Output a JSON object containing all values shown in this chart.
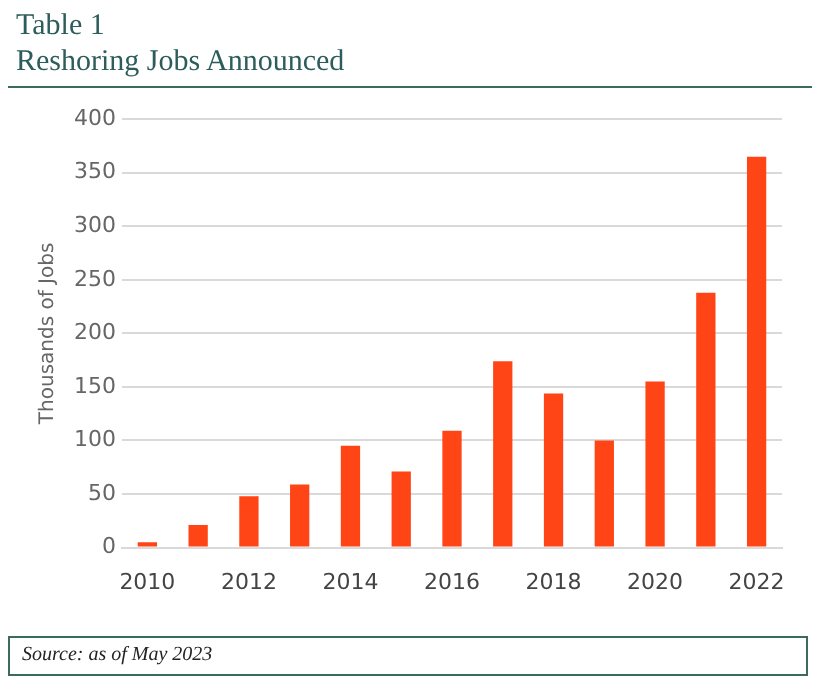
{
  "chart_data": {
    "type": "bar",
    "title": "Table 1",
    "subtitle": "Reshoring Jobs Announced",
    "ylabel": "Thousands of Jobs",
    "categories": [
      "2010",
      null,
      "2012",
      null,
      "2014",
      null,
      "2016",
      null,
      "2018",
      null,
      "2020",
      null,
      "2022"
    ],
    "values": [
      5,
      21,
      48,
      59,
      95,
      71,
      109,
      174,
      144,
      100,
      155,
      238,
      365
    ],
    "color": "#ff4516",
    "ylim": [
      0,
      400
    ],
    "yticks": [
      0,
      50,
      100,
      150,
      200,
      250,
      300,
      350,
      400
    ],
    "grid": "y",
    "legend": false,
    "annotations": [
      "Source:  as of May 2023"
    ]
  }
}
